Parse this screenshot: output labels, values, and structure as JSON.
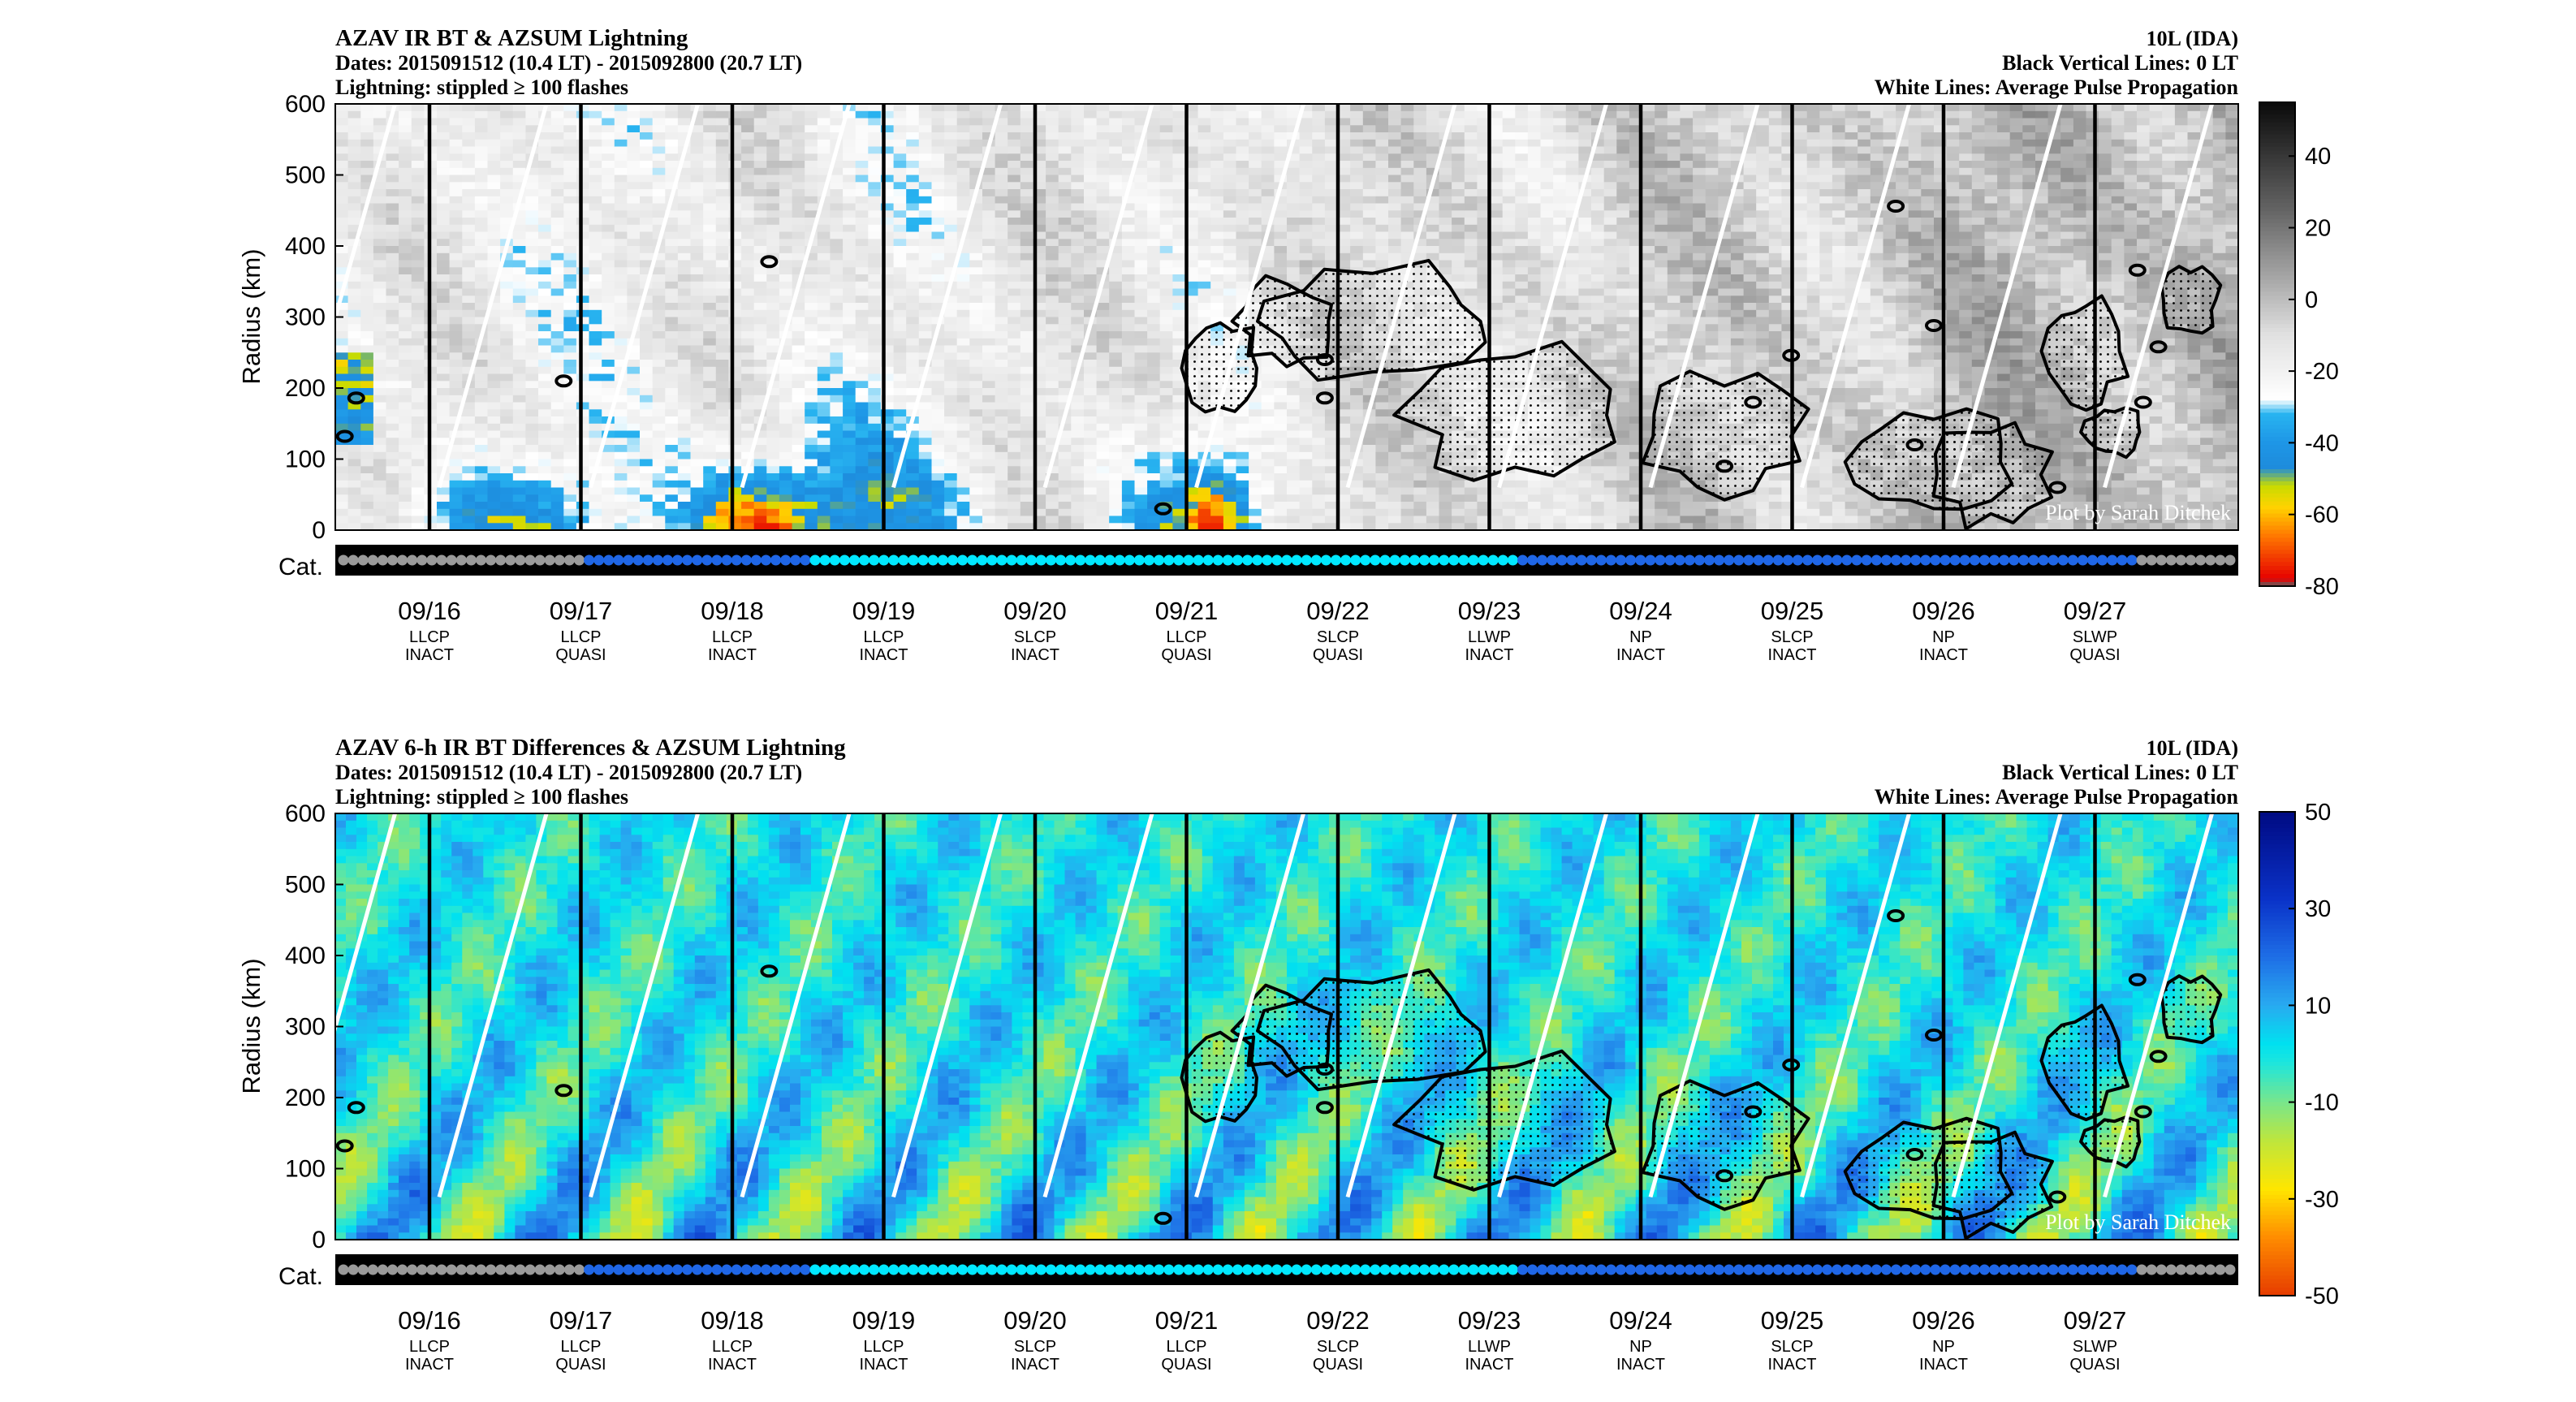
{
  "colors": {
    "contour": "#000000",
    "propagation_line": "#ffffff",
    "cat_bar_bg": "#000000",
    "category_dot": {
      "grey": "#9a9a9a",
      "blue": "#1f66e6",
      "cyan": "#00e8ff"
    }
  },
  "chart_data": [
    {
      "type": "heatmap",
      "title": "AZAV IR BT & AZSUM Lightning",
      "subtitle_lines": [
        "Dates: 2015091512 (10.4 LT) - 2015092800 (20.7 LT)",
        "Lightning: stippled ≥ 100 flashes"
      ],
      "right_lines": [
        "10L (IDA)",
        "Black Vertical Lines: 0 LT",
        "White Lines: Average Pulse Propagation"
      ],
      "ylabel": "Radius (km)",
      "ylim": [
        0,
        600
      ],
      "yticks": [
        "600",
        "500",
        "400",
        "300",
        "200",
        "100",
        "0"
      ],
      "cat_label": "Cat.",
      "watermark": "Plot by Sarah Ditchek",
      "x_days": [
        {
          "date": "09/16",
          "pulse": "LLCP",
          "state": "INACT"
        },
        {
          "date": "09/17",
          "pulse": "LLCP",
          "state": "QUASI"
        },
        {
          "date": "09/18",
          "pulse": "LLCP",
          "state": "INACT"
        },
        {
          "date": "09/19",
          "pulse": "LLCP",
          "state": "INACT"
        },
        {
          "date": "09/20",
          "pulse": "SLCP",
          "state": "INACT"
        },
        {
          "date": "09/21",
          "pulse": "LLCP",
          "state": "QUASI"
        },
        {
          "date": "09/22",
          "pulse": "SLCP",
          "state": "QUASI"
        },
        {
          "date": "09/23",
          "pulse": "LLWP",
          "state": "INACT"
        },
        {
          "date": "09/24",
          "pulse": "NP",
          "state": "INACT"
        },
        {
          "date": "09/25",
          "pulse": "SLCP",
          "state": "INACT"
        },
        {
          "date": "09/26",
          "pulse": "NP",
          "state": "INACT"
        },
        {
          "date": "09/27",
          "pulse": "SLWP",
          "state": "QUASI"
        }
      ],
      "colorbar": {
        "ticks": [
          "40",
          "20",
          "0",
          "-20",
          "-40",
          "-60",
          "-80"
        ],
        "range": [
          -80,
          55
        ]
      },
      "color_scale": "ir_bt"
    },
    {
      "type": "heatmap",
      "title": "AZAV 6-h IR BT Differences & AZSUM Lightning",
      "subtitle_lines": [
        "Dates: 2015091512 (10.4 LT) - 2015092800 (20.7 LT)",
        "Lightning: stippled ≥ 100 flashes"
      ],
      "right_lines": [
        "10L (IDA)",
        "Black Vertical Lines: 0 LT",
        "White Lines: Average Pulse Propagation"
      ],
      "ylabel": "Radius (km)",
      "ylim": [
        0,
        600
      ],
      "yticks": [
        "600",
        "500",
        "400",
        "300",
        "200",
        "100",
        "0"
      ],
      "cat_label": "Cat.",
      "watermark": "Plot by Sarah Ditchek",
      "x_days": [
        {
          "date": "09/16",
          "pulse": "LLCP",
          "state": "INACT"
        },
        {
          "date": "09/17",
          "pulse": "LLCP",
          "state": "QUASI"
        },
        {
          "date": "09/18",
          "pulse": "LLCP",
          "state": "INACT"
        },
        {
          "date": "09/19",
          "pulse": "LLCP",
          "state": "INACT"
        },
        {
          "date": "09/20",
          "pulse": "SLCP",
          "state": "INACT"
        },
        {
          "date": "09/21",
          "pulse": "LLCP",
          "state": "QUASI"
        },
        {
          "date": "09/22",
          "pulse": "SLCP",
          "state": "QUASI"
        },
        {
          "date": "09/23",
          "pulse": "LLWP",
          "state": "INACT"
        },
        {
          "date": "09/24",
          "pulse": "NP",
          "state": "INACT"
        },
        {
          "date": "09/25",
          "pulse": "SLCP",
          "state": "INACT"
        },
        {
          "date": "09/26",
          "pulse": "NP",
          "state": "INACT"
        },
        {
          "date": "09/27",
          "pulse": "SLWP",
          "state": "QUASI"
        }
      ],
      "colorbar": {
        "ticks": [
          "50",
          "30",
          "10",
          "-10",
          "-30",
          "-50"
        ],
        "range": [
          -50,
          50
        ]
      },
      "color_scale": "bt_diff"
    }
  ],
  "category_sequence": "gggggggggggggggggggggggggbbbbbbbbbbbbbbbbbbbbbbbccccccccccccccccccccccccccccccccccccccccccccccccccccccccccccccccccccccccbbbbbbbbbbbbbbbbbbbbbbbbbbbbbbbbbbbbbbbbbbbbbbbbbbbbbbbbbbbbbbbgggggggggg"
}
